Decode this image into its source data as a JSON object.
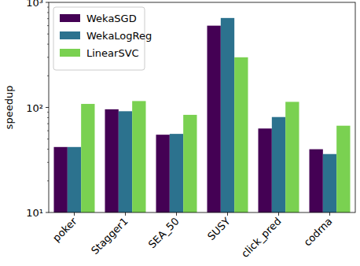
{
  "chart_data": {
    "type": "bar",
    "y_label": "speedup",
    "categories": [
      "poker",
      "Stagger1",
      "SEA_50",
      "SUSY",
      "click_pred",
      "codrna"
    ],
    "series": [
      {
        "name": "WekaSGD",
        "color": "#440154",
        "values": [
          42,
          96,
          55,
          600,
          63,
          40
        ]
      },
      {
        "name": "WekaLogReg",
        "color": "#2c728e",
        "values": [
          42,
          92,
          56,
          710,
          81,
          36
        ]
      },
      {
        "name": "LinearSVC",
        "color": "#7ad151",
        "values": [
          108,
          115,
          85,
          300,
          113,
          67
        ]
      }
    ],
    "log": "y",
    "ylim": [
      10,
      1000
    ],
    "yticks": [
      {
        "value": 10,
        "label": "10¹"
      },
      {
        "value": 100,
        "label": "10²"
      },
      {
        "value": 1000,
        "label": "10³"
      }
    ],
    "grid": false,
    "legend": "upper left"
  }
}
